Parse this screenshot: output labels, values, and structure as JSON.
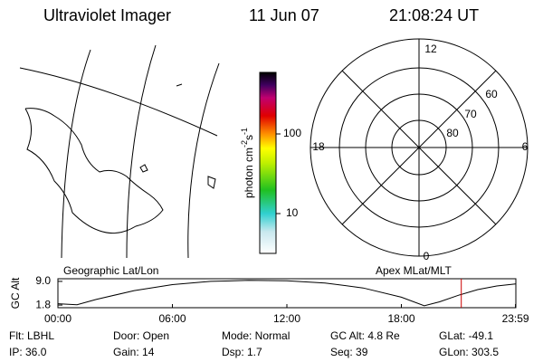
{
  "header": {
    "title": "Ultraviolet Imager",
    "date": "11 Jun 07",
    "time": "21:08:24 UT"
  },
  "colorbar": {
    "label": "photon cm",
    "exp1": "-2",
    "unit2": "s",
    "exp2": "-1",
    "ticks": [
      "100",
      "10"
    ]
  },
  "map_label": "Geographic Lat/Lon",
  "polar": {
    "label": "Apex MLat/MLT",
    "mlt_labels": [
      "12",
      "18",
      "6",
      "0"
    ],
    "lat_labels": [
      "60",
      "70",
      "80"
    ]
  },
  "chart_data": {
    "type": "line",
    "ylabel": "GC Alt",
    "x": [
      0,
      1,
      2,
      4,
      6,
      8,
      10,
      12,
      14,
      16,
      18,
      19.2,
      20,
      21,
      22,
      23,
      23.98
    ],
    "values": [
      2.2,
      1.9,
      3.5,
      6.2,
      8.0,
      9.0,
      9.3,
      9.2,
      8.5,
      7.0,
      4.2,
      1.6,
      2.8,
      4.8,
      6.5,
      7.6,
      8.2
    ],
    "color": "#000000",
    "xlim": [
      0,
      24
    ],
    "ylim": [
      1.0,
      9.8
    ],
    "yticks": [
      {
        "value": 9.0,
        "label": "9.0"
      },
      {
        "value": 1.8,
        "label": "1.8"
      }
    ],
    "xticks": [
      {
        "value": 0,
        "label": "00:00"
      },
      {
        "value": 6,
        "label": "06:00"
      },
      {
        "value": 12,
        "label": "12:00"
      },
      {
        "value": 18,
        "label": "18:00"
      },
      {
        "value": 23.98,
        "label": "23:59"
      }
    ],
    "marker": {
      "x": 21.14,
      "color": "#cc0000"
    }
  },
  "footer": {
    "rows": [
      [
        "Flt: LBHL",
        "Door: Open",
        "Mode: Normal",
        "GC Alt: 4.8 Re",
        "GLat: -49.1"
      ],
      [
        "IP: 36.0",
        "Gain: 14",
        "Dsp:    1.7",
        "Seq: 39",
        "GLon: 303.5"
      ]
    ]
  }
}
